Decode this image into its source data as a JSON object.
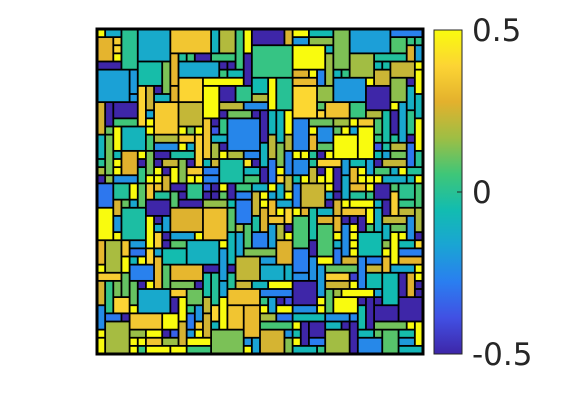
{
  "chart_data": {
    "type": "heatmap",
    "title": "",
    "xlabel": "",
    "ylabel": "",
    "rows": 40,
    "cols": 40,
    "grid": false,
    "colormap": "parula",
    "colormap_stops": [
      "#3e26a8",
      "#4150e3",
      "#2a7ef0",
      "#1aa4d4",
      "#12bcb0",
      "#3fc678",
      "#9ebe44",
      "#e3b12d",
      "#fcd434",
      "#f9fb0e"
    ],
    "block_outline_color": "#000000",
    "colorbar": {
      "position": "right",
      "clim": [
        -0.5,
        0.5
      ],
      "ticks": [
        0.5,
        0,
        -0.5
      ],
      "tick_labels": [
        "0.5",
        "0",
        "-0.5"
      ]
    }
  }
}
